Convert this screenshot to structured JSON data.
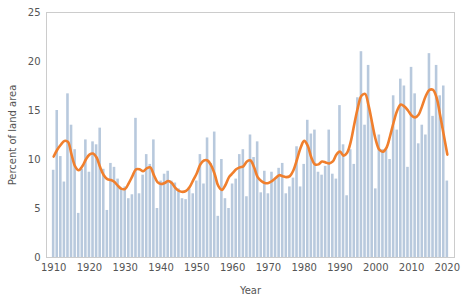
{
  "chart_data": {
    "type": "bar",
    "x_label": "Year",
    "y_label": "Percent of land area",
    "x": [
      1910,
      1911,
      1912,
      1913,
      1914,
      1915,
      1916,
      1917,
      1918,
      1919,
      1920,
      1921,
      1922,
      1923,
      1924,
      1925,
      1926,
      1927,
      1928,
      1929,
      1930,
      1931,
      1932,
      1933,
      1934,
      1935,
      1936,
      1937,
      1938,
      1939,
      1940,
      1941,
      1942,
      1943,
      1944,
      1945,
      1946,
      1947,
      1948,
      1949,
      1950,
      1951,
      1952,
      1953,
      1954,
      1955,
      1956,
      1957,
      1958,
      1959,
      1960,
      1961,
      1962,
      1963,
      1964,
      1965,
      1966,
      1967,
      1968,
      1969,
      1970,
      1971,
      1972,
      1973,
      1974,
      1975,
      1976,
      1977,
      1978,
      1979,
      1980,
      1981,
      1982,
      1983,
      1984,
      1985,
      1986,
      1987,
      1988,
      1989,
      1990,
      1991,
      1992,
      1993,
      1994,
      1995,
      1996,
      1997,
      1998,
      1999,
      2000,
      2001,
      2002,
      2003,
      2004,
      2005,
      2006,
      2007,
      2008,
      2009,
      2010,
      2011,
      2012,
      2013,
      2014,
      2015,
      2016,
      2017,
      2018,
      2019,
      2020
    ],
    "series": [
      {
        "type": "bar",
        "color": "#b8c9dd",
        "values": [
          8.9,
          15,
          10.3,
          7.7,
          16.7,
          13.5,
          11,
          4.5,
          9,
          12,
          8.7,
          11.8,
          11.5,
          13.2,
          9,
          4.8,
          9.6,
          9.2,
          8,
          7,
          7.2,
          6,
          6.4,
          14.2,
          6.5,
          8.4,
          10.5,
          9.5,
          12,
          5,
          7.8,
          8.5,
          8.8,
          7.8,
          7.6,
          7,
          6,
          5.9,
          7,
          6.5,
          7.8,
          10.5,
          7.5,
          12.2,
          9.6,
          12.8,
          4.2,
          10,
          6,
          5,
          7.5,
          8,
          10.5,
          11,
          6.2,
          12.5,
          10.2,
          11.8,
          6.6,
          8.8,
          6.5,
          8.7,
          8,
          9.1,
          9.6,
          6.5,
          7.2,
          8.1,
          11.3,
          7.2,
          9.5,
          14,
          12.6,
          13,
          8.7,
          8.4,
          9.3,
          13,
          8.5,
          8,
          15.5,
          11.5,
          6.3,
          11,
          9.5,
          16.3,
          21,
          13.5,
          19.6,
          14,
          7,
          12.5,
          11,
          11,
          10,
          16.5,
          13,
          18.2,
          17.5,
          9.2,
          19.4,
          16.7,
          11.6,
          13.5,
          12.5,
          20.8,
          14.4,
          19.6,
          16.5,
          17.5,
          7.8
        ]
      },
      {
        "type": "line",
        "color": "#f07f2d",
        "values": [
          10.3,
          11,
          11.5,
          11.9,
          11.8,
          10.5,
          9.3,
          8.9,
          9.3,
          10,
          10.5,
          10.6,
          10.2,
          9.2,
          8.4,
          8,
          7.9,
          7.7,
          7.3,
          7,
          7,
          7.6,
          8.3,
          9,
          9,
          8.8,
          9.1,
          9.2,
          8.4,
          7.7,
          7.5,
          7.6,
          7.8,
          7.6,
          7.1,
          6.8,
          6.7,
          6.8,
          7.2,
          7.9,
          8.6,
          9.5,
          9.9,
          9.9,
          9.4,
          8.5,
          7.3,
          6.9,
          7.4,
          8.2,
          8.6,
          9,
          9.2,
          9.3,
          9.8,
          9.9,
          9.2,
          8.2,
          7.8,
          7.6,
          7.6,
          7.8,
          8.1,
          8.4,
          8.3,
          8.2,
          8.3,
          8.9,
          10,
          11.2,
          11.9,
          11.4,
          10.2,
          9.5,
          9.5,
          9.8,
          9.7,
          9.6,
          9.8,
          10.5,
          10.8,
          10.4,
          10.7,
          11.8,
          13.6,
          15.3,
          16.5,
          16.7,
          15.5,
          13.7,
          12,
          11,
          10.8,
          11.2,
          12.4,
          13.8,
          15,
          15.6,
          15.4,
          15,
          14.5,
          14.3,
          14.6,
          15.5,
          16.5,
          17.1,
          17.1,
          16.3,
          14.5,
          12.5,
          10.5
        ]
      }
    ],
    "xlim": [
      1908,
      2022
    ],
    "xticks": [
      1910,
      1920,
      1930,
      1940,
      1950,
      1960,
      1970,
      1980,
      1990,
      2000,
      2010,
      2020
    ],
    "ylim": [
      0,
      25
    ],
    "yticks": [
      0,
      5,
      10,
      15,
      20,
      25
    ],
    "grid": false
  }
}
